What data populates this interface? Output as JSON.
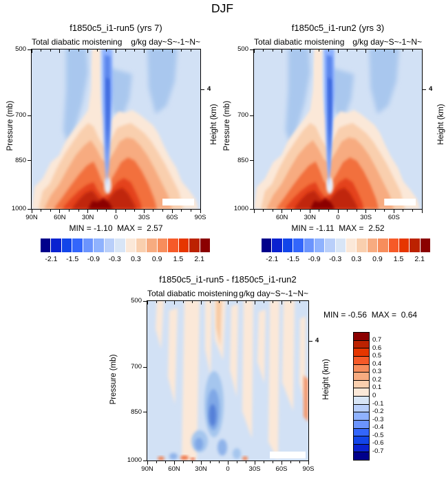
{
  "title": "DJF",
  "axis": {
    "pressure_label": "Pressure (mb)",
    "height_label": "Height (km)",
    "pressure_ticks": [
      "500",
      "700",
      "850",
      "1000"
    ],
    "height_ticks": [
      "4"
    ],
    "lat_ticks_full": [
      "90N",
      "60N",
      "30N",
      "0",
      "30S",
      "60S",
      "90S"
    ],
    "lat_ticks_inner": [
      "60N",
      "30N",
      "0",
      "30S",
      "60S"
    ]
  },
  "panels": {
    "top_left": {
      "title": "f1850c5_i1-run5 (yrs 7)",
      "center_string": "Total diabatic moistening",
      "right_string": "g/kg day~S~-1~N~",
      "stats": "MIN = -1.10  MAX =  2.57"
    },
    "top_right": {
      "title": "f1850c5_i1-run2 (yrs 3)",
      "center_string": "Total diabatic moistening",
      "right_string": "g/kg day~S~-1~N~",
      "stats": "MIN = -1.11  MAX =  2.52"
    },
    "bottom": {
      "title": "f1850c5_i1-run5 - f1850c5_i1-run2",
      "center_string": "Total diabatic moistening",
      "right_string": "g/kg day~S~-1~N~",
      "stats": "MIN = -0.56  MAX =  0.64"
    }
  },
  "colorbars": {
    "palette": [
      "#00008b",
      "#0a22d0",
      "#1245e9",
      "#3366fb",
      "#6b94fd",
      "#8fb2fe",
      "#b9cffa",
      "#d8e5f6",
      "#fbe8d8",
      "#f9cfae",
      "#f7ab80",
      "#f78d5c",
      "#f65a28",
      "#e63600",
      "#bc2200",
      "#8b0000"
    ],
    "horizontal_labels": [
      "-2.1",
      "-1.5",
      "-0.9",
      "-0.3",
      "0.3",
      "0.9",
      "1.5",
      "2.1"
    ],
    "vertical_labels": [
      "0.7",
      "0.6",
      "0.5",
      "0.4",
      "0.3",
      "0.2",
      "0.1",
      "0",
      "-0.1",
      "-0.2",
      "-0.3",
      "-0.4",
      "-0.5",
      "-0.6",
      "-0.7"
    ]
  },
  "chart_data": [
    {
      "type": "heatmap",
      "panel": "top_left",
      "season": "DJF",
      "title": "f1850c5_i1-run5 (yrs 7)",
      "variable": "Total diabatic moistening",
      "units_string": "g/kg day~S~-1~N~",
      "x_ticks": [
        "90N",
        "60N",
        "30N",
        "0",
        "30S",
        "60S",
        "90S"
      ],
      "y_left_label": "Pressure (mb)",
      "y_left_ticks": [
        500,
        700,
        850,
        1000
      ],
      "y_right_label": "Height (km)",
      "y_right_ticks": [
        4
      ],
      "contour_levels": [
        -2.1,
        -1.8,
        -1.5,
        -1.2,
        -0.9,
        -0.6,
        -0.3,
        0,
        0.3,
        0.6,
        0.9,
        1.2,
        1.5,
        1.8,
        2.1
      ],
      "min": -1.1,
      "max": 2.57,
      "pattern": "strong positive moistening mound below ~750mb peaking at the near-equatorial surface (dark red); narrow negative (blue) column near the equator 500-950mb; weak negative patches aloft near 40N, 10S and 60S"
    },
    {
      "type": "heatmap",
      "panel": "top_right",
      "season": "DJF",
      "title": "f1850c5_i1-run2 (yrs 3)",
      "variable": "Total diabatic moistening",
      "units_string": "g/kg day~S~-1~N~",
      "x_ticks": [
        "60N",
        "30N",
        "0",
        "30S",
        "60S"
      ],
      "y_left_label": "Pressure (mb)",
      "y_left_ticks": [
        500,
        700,
        850,
        1000
      ],
      "y_right_label": "Height (km)",
      "y_right_ticks": [
        4
      ],
      "contour_levels": [
        -2.1,
        -1.8,
        -1.5,
        -1.2,
        -0.9,
        -0.6,
        -0.3,
        0,
        0.3,
        0.6,
        0.9,
        1.2,
        1.5,
        1.8,
        2.1
      ],
      "min": -1.11,
      "max": 2.52,
      "pattern": "nearly identical structure to run5: surface-intensified tropical moistening, equatorial blue drying column, weak blue patches aloft"
    },
    {
      "type": "heatmap",
      "panel": "bottom",
      "season": "DJF",
      "title": "f1850c5_i1-run5 - f1850c5_i1-run2",
      "variable": "Total diabatic moistening",
      "units_string": "g/kg day~S~-1~N~",
      "x_ticks": [
        "90N",
        "60N",
        "30N",
        "0",
        "30S",
        "60S",
        "90S"
      ],
      "y_left_label": "Pressure (mb)",
      "y_left_ticks": [
        500,
        700,
        850,
        1000
      ],
      "y_right_label": "Height (km)",
      "y_right_ticks": [
        4
      ],
      "contour_levels": [
        -0.7,
        -0.6,
        -0.5,
        -0.4,
        -0.3,
        -0.2,
        -0.1,
        0,
        0.1,
        0.2,
        0.3,
        0.4,
        0.5,
        0.6,
        0.7
      ],
      "min": -0.56,
      "max": 0.64,
      "pattern": "weak difference field: pale vertical streaks, modest negative (blue) anomalies near 20-40N in the lower troposphere and small warm/cold spots near the surface"
    }
  ]
}
